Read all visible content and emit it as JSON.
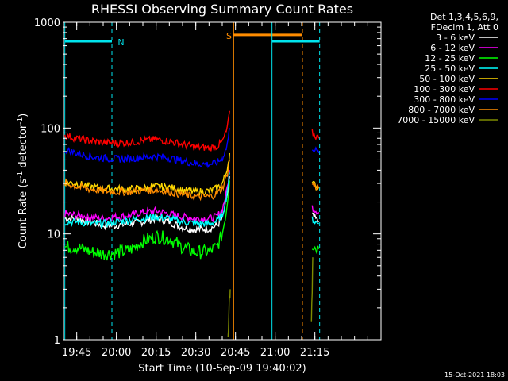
{
  "chart_data": {
    "type": "line",
    "title": "RHESSI Observing Summary Count Rates",
    "xlabel": "Start Time (10-Sep-09 19:40:02)",
    "ylabel_main": "Count Rate (s",
    "ylabel_sup1": "-1",
    "ylabel_mid": " detector",
    "ylabel_sup2": "-1",
    "ylabel_end": ")",
    "y_scale": "log",
    "ylim": [
      1,
      1000
    ],
    "y_ticks": [
      {
        "value": 1,
        "label": "1"
      },
      {
        "value": 10,
        "label": "10"
      },
      {
        "value": 100,
        "label": "100"
      },
      {
        "value": 1000,
        "label": "1000"
      }
    ],
    "xlim_min": [
      40,
      160
    ],
    "x_ticks": [
      {
        "value": 45,
        "label": "19:45"
      },
      {
        "value": 60,
        "label": "20:00"
      },
      {
        "value": 75,
        "label": "20:15"
      },
      {
        "value": 90,
        "label": "20:30"
      },
      {
        "value": 105,
        "label": "20:45"
      },
      {
        "value": 120,
        "label": "21:00"
      },
      {
        "value": 135,
        "label": "21:15"
      }
    ],
    "legend": {
      "position": "right",
      "header": [
        "Det 1,3,4,5,6,9,",
        "FDecim 1, Att 0"
      ],
      "entries": [
        {
          "label": "3 - 6 keV",
          "color": "#ffffff"
        },
        {
          "label": "6 - 12 keV",
          "color": "#ff00ff"
        },
        {
          "label": "12 - 25 keV",
          "color": "#00ff00"
        },
        {
          "label": "25 - 50 keV",
          "color": "#00ffff"
        },
        {
          "label": "50 - 100 keV",
          "color": "#ffd800"
        },
        {
          "label": "100 - 300 keV",
          "color": "#ff0000"
        },
        {
          "label": "300 - 800 keV",
          "color": "#0000ff"
        },
        {
          "label": "800 - 7000 keV",
          "color": "#ff8c00"
        },
        {
          "label": "7000 - 15000 keV",
          "color": "#7f8c00"
        }
      ]
    },
    "series": [
      {
        "color": "#ffffff",
        "segments": [
          {
            "points": [
              [
                40.5,
                14
              ],
              [
                45,
                14
              ],
              [
                50,
                13
              ],
              [
                55,
                12
              ],
              [
                60,
                12
              ],
              [
                65,
                12.5
              ],
              [
                70,
                13
              ],
              [
                75,
                14
              ],
              [
                80,
                13
              ],
              [
                85,
                11.5
              ],
              [
                90,
                11
              ],
              [
                95,
                11.2
              ],
              [
                98,
                12
              ],
              [
                100,
                14
              ],
              [
                101.5,
                20
              ],
              [
                102.3,
                28
              ],
              [
                102.8,
                35
              ]
            ]
          },
          {
            "points": [
              [
                134,
                15
              ],
              [
                135,
                14
              ],
              [
                136.5,
                13
              ]
            ]
          }
        ]
      },
      {
        "color": "#ff00ff",
        "segments": [
          {
            "points": [
              [
                40.5,
                15.5
              ],
              [
                45,
                15
              ],
              [
                50,
                14.5
              ],
              [
                55,
                14
              ],
              [
                60,
                14.5
              ],
              [
                65,
                15
              ],
              [
                70,
                16
              ],
              [
                75,
                16.5
              ],
              [
                80,
                15.5
              ],
              [
                85,
                14.5
              ],
              [
                90,
                14
              ],
              [
                95,
                14
              ],
              [
                98,
                14.5
              ],
              [
                100,
                17
              ],
              [
                101.5,
                24
              ],
              [
                102.3,
                32
              ],
              [
                102.8,
                40
              ]
            ]
          },
          {
            "points": [
              [
                134,
                18
              ],
              [
                135,
                17
              ],
              [
                136.5,
                16
              ]
            ]
          }
        ]
      },
      {
        "color": "#00ff00",
        "segments": [
          {
            "points": [
              [
                40.5,
                7.5
              ],
              [
                45,
                7.5
              ],
              [
                50,
                6.8
              ],
              [
                55,
                6.5
              ],
              [
                60,
                6.6
              ],
              [
                65,
                7
              ],
              [
                70,
                8.5
              ],
              [
                75,
                9.5
              ],
              [
                80,
                9
              ],
              [
                85,
                7.5
              ],
              [
                90,
                6.7
              ],
              [
                95,
                6.8
              ],
              [
                98,
                7.5
              ],
              [
                100,
                10
              ],
              [
                101.5,
                16
              ],
              [
                102.3,
                24
              ],
              [
                102.8,
                32
              ]
            ]
          },
          {
            "points": [
              [
                134,
                8
              ],
              [
                135,
                7.5
              ],
              [
                136.5,
                7.2
              ]
            ]
          }
        ]
      },
      {
        "color": "#00ffff",
        "segments": [
          {
            "points": [
              [
                40.5,
                13
              ],
              [
                45,
                13
              ],
              [
                50,
                12.5
              ],
              [
                55,
                12.5
              ],
              [
                60,
                13
              ],
              [
                65,
                13.5
              ],
              [
                70,
                14
              ],
              [
                75,
                14.5
              ],
              [
                80,
                14
              ],
              [
                85,
                13
              ],
              [
                90,
                12.5
              ],
              [
                95,
                12.5
              ],
              [
                98,
                13.2
              ],
              [
                100,
                15
              ],
              [
                101.5,
                22
              ],
              [
                102.3,
                30
              ],
              [
                102.8,
                38
              ]
            ]
          },
          {
            "points": [
              [
                134,
                14
              ],
              [
                135,
                13
              ],
              [
                136.5,
                12.5
              ]
            ]
          }
        ]
      },
      {
        "color": "#ffd800",
        "segments": [
          {
            "points": [
              [
                40.5,
                31
              ],
              [
                45,
                30
              ],
              [
                50,
                28
              ],
              [
                55,
                27
              ],
              [
                60,
                26.5
              ],
              [
                65,
                26.5
              ],
              [
                70,
                27
              ],
              [
                75,
                28
              ],
              [
                80,
                27.5
              ],
              [
                85,
                26
              ],
              [
                90,
                25
              ],
              [
                95,
                25.5
              ],
              [
                98,
                27
              ],
              [
                100,
                30
              ],
              [
                101.5,
                38
              ],
              [
                102.3,
                48
              ],
              [
                102.8,
                58
              ]
            ]
          },
          {
            "points": [
              [
                134,
                30
              ],
              [
                135,
                29
              ],
              [
                136.5,
                28
              ]
            ]
          }
        ]
      },
      {
        "color": "#ff0000",
        "segments": [
          {
            "points": [
              [
                40.5,
                85
              ],
              [
                45,
                80
              ],
              [
                50,
                76
              ],
              [
                55,
                73
              ],
              [
                60,
                72
              ],
              [
                65,
                73
              ],
              [
                70,
                76
              ],
              [
                75,
                78
              ],
              [
                80,
                75
              ],
              [
                85,
                70
              ],
              [
                90,
                66
              ],
              [
                95,
                65
              ],
              [
                98,
                67
              ],
              [
                100,
                74
              ],
              [
                101.5,
                92
              ],
              [
                102.3,
                115
              ],
              [
                102.8,
                145
              ]
            ]
          },
          {
            "points": [
              [
                134,
                90
              ],
              [
                135,
                85
              ],
              [
                136.5,
                80
              ]
            ]
          }
        ]
      },
      {
        "color": "#0000ff",
        "segments": [
          {
            "points": [
              [
                40.5,
                62
              ],
              [
                45,
                58
              ],
              [
                50,
                54
              ],
              [
                55,
                52
              ],
              [
                60,
                51
              ],
              [
                65,
                51.5
              ],
              [
                70,
                53
              ],
              [
                75,
                54
              ],
              [
                80,
                52
              ],
              [
                85,
                49
              ],
              [
                90,
                46
              ],
              [
                95,
                45.5
              ],
              [
                98,
                47
              ],
              [
                100,
                52
              ],
              [
                101.5,
                64
              ],
              [
                102.3,
                80
              ],
              [
                102.8,
                100
              ]
            ]
          },
          {
            "points": [
              [
                134,
                66
              ],
              [
                135,
                62
              ],
              [
                136.5,
                58
              ]
            ]
          }
        ]
      },
      {
        "color": "#ff8c00",
        "segments": [
          {
            "points": [
              [
                40.5,
                30
              ],
              [
                45,
                28
              ],
              [
                50,
                26.5
              ],
              [
                55,
                25.5
              ],
              [
                60,
                25
              ],
              [
                65,
                25
              ],
              [
                70,
                25.5
              ],
              [
                75,
                26
              ],
              [
                80,
                25
              ],
              [
                85,
                23.5
              ],
              [
                90,
                22.5
              ],
              [
                95,
                22.5
              ],
              [
                98,
                24
              ],
              [
                100,
                27
              ],
              [
                101.5,
                34
              ],
              [
                102.3,
                42
              ],
              [
                102.8,
                50
              ]
            ]
          },
          {
            "points": [
              [
                134,
                30
              ],
              [
                135,
                28
              ],
              [
                136.5,
                27
              ]
            ]
          }
        ]
      },
      {
        "color": "#7f8c00",
        "segments": [
          {
            "points": [
              [
                102.2,
                1.05
              ],
              [
                102.5,
                1.6
              ],
              [
                102.8,
                2.6
              ],
              [
                103,
                3
              ]
            ]
          },
          {
            "points": [
              [
                133.7,
                1.3
              ],
              [
                134,
                3
              ],
              [
                134.2,
                6
              ]
            ]
          }
        ]
      }
    ],
    "flags": [
      {
        "label": "N",
        "color": "#00e5ee",
        "level": 660,
        "x_start": 40.5,
        "x_end": 58.3,
        "label_x": 60.5,
        "vline": 58.3,
        "dashed": true
      },
      {
        "label": "S",
        "color": "#ff8c00",
        "level": 760,
        "x_start": 104.3,
        "x_end": 130.3,
        "label_x": 101.5,
        "vline": 104.3,
        "dashed": false,
        "vline_end": 130.3
      },
      {
        "label": "",
        "color": "#00e5ee",
        "level": 660,
        "x_start": 118.8,
        "x_end": 136.8,
        "label_x": null,
        "vline": 118.8,
        "dashed": false,
        "vline_end": 136.8
      }
    ],
    "timestamp": "15-Oct-2021 18:03"
  }
}
